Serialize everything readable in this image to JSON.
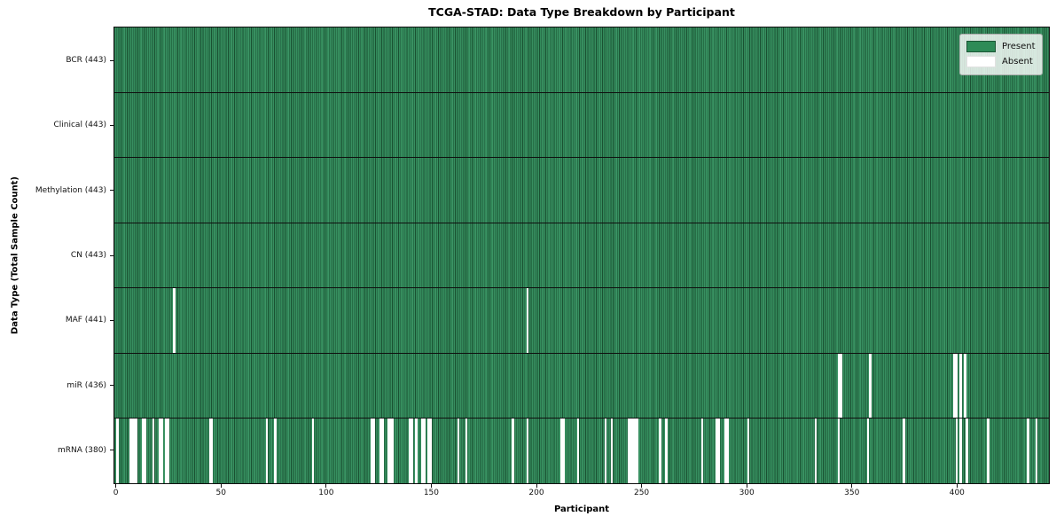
{
  "title": "TCGA-STAD: Data Type Breakdown by Participant",
  "xlabel": "Participant",
  "ylabel": "Data Type (Total Sample Count)",
  "legend": {
    "present_label": "Present",
    "absent_label": "Absent"
  },
  "colors": {
    "present": "#2e8b57",
    "present_edge": "#1a5132",
    "absent": "#ffffff",
    "frame": "#0f0f0f"
  },
  "chart_data": {
    "type": "heatmap",
    "title": "TCGA-STAD: Data Type Breakdown by Participant",
    "xlabel": "Participant",
    "ylabel": "Data Type (Total Sample Count)",
    "legend_entries": [
      {
        "label": "Present",
        "color": "#2e8b57"
      },
      {
        "label": "Absent",
        "color": "#ffffff"
      }
    ],
    "legend_position": "upper right",
    "total_participants": 443,
    "x_axis_units": 444,
    "x_ticks": [
      0,
      50,
      100,
      150,
      200,
      250,
      300,
      350,
      400
    ],
    "rows": [
      {
        "name": "BCR",
        "count": 443,
        "display": "BCR (443)",
        "absent": []
      },
      {
        "name": "Clinical",
        "count": 443,
        "display": "Clinical (443)",
        "absent": []
      },
      {
        "name": "Methylation",
        "count": 443,
        "display": "Methylation (443)",
        "absent": []
      },
      {
        "name": "CN",
        "count": 443,
        "display": "CN (443)",
        "absent": []
      },
      {
        "name": "MAF",
        "count": 441,
        "display": "MAF (441)",
        "absent": [
          28,
          196
        ]
      },
      {
        "name": "miR",
        "count": 436,
        "display": "miR (436)",
        "absent": [
          344,
          345,
          359,
          399,
          400,
          402,
          404
        ]
      },
      {
        "name": "mRNA",
        "count": 380,
        "display": "mRNA (380)",
        "absent": [
          1,
          7,
          8,
          9,
          10,
          13,
          14,
          18,
          21,
          22,
          24,
          25,
          45,
          46,
          72,
          76,
          94,
          122,
          123,
          126,
          127,
          130,
          131,
          132,
          140,
          141,
          143,
          146,
          147,
          149,
          150,
          163,
          167,
          189,
          196,
          212,
          213,
          220,
          233,
          236,
          244,
          245,
          246,
          247,
          248,
          259,
          262,
          279,
          286,
          287,
          290,
          291,
          301,
          333,
          344,
          358,
          375,
          400,
          402,
          405,
          415,
          434,
          438
        ]
      }
    ]
  }
}
